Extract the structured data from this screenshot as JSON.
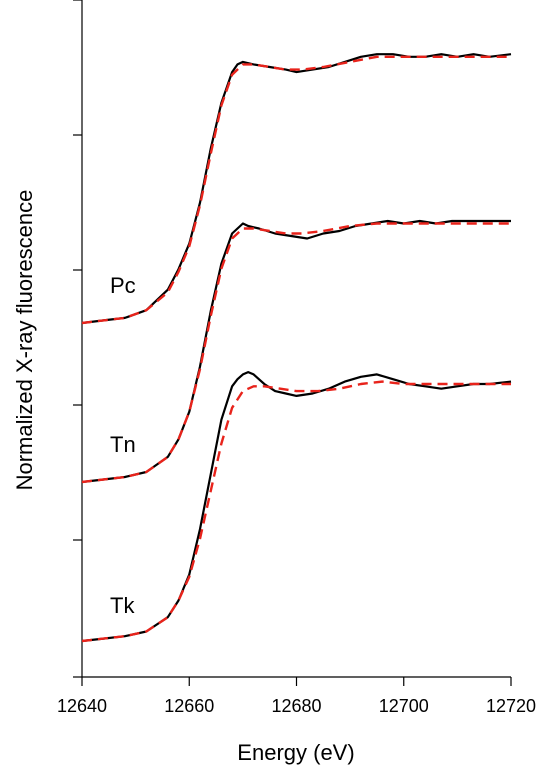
{
  "chart_data": {
    "type": "line",
    "title": "",
    "xlabel": "Energy (eV)",
    "ylabel": "Normalized X-ray fluorescence",
    "xlim": [
      12640,
      12720
    ],
    "x_ticks": [
      12640,
      12660,
      12680,
      12700,
      12720
    ],
    "y_ticks_labeled": false,
    "grid": false,
    "legend": "none",
    "colors": {
      "measured": "#000000",
      "fit": "#e8231b"
    },
    "annotations": [
      "Pc",
      "Tn",
      "Tk"
    ],
    "series": [
      {
        "label": "Pc",
        "measured": {
          "x": [
            12640,
            12644,
            12648,
            12652,
            12656,
            12658,
            12660,
            12662,
            12664,
            12666,
            12668,
            12669,
            12670,
            12672,
            12675,
            12678,
            12680,
            12683,
            12686,
            12689,
            12692,
            12695,
            12698,
            12701,
            12704,
            12707,
            12710,
            12713,
            12716,
            12720
          ],
          "y": [
            0.0,
            0.01,
            0.02,
            0.05,
            0.13,
            0.21,
            0.31,
            0.47,
            0.68,
            0.86,
            0.98,
            1.01,
            1.02,
            1.01,
            1.0,
            0.99,
            0.98,
            0.99,
            1.0,
            1.02,
            1.04,
            1.05,
            1.05,
            1.04,
            1.04,
            1.05,
            1.04,
            1.05,
            1.04,
            1.05
          ]
        },
        "fit": {
          "x": [
            12640,
            12644,
            12648,
            12652,
            12656,
            12658,
            12660,
            12662,
            12664,
            12666,
            12668,
            12670,
            12672,
            12675,
            12678,
            12681,
            12685,
            12690,
            12695,
            12700,
            12705,
            12710,
            12715,
            12720
          ],
          "y": [
            0.0,
            0.01,
            0.02,
            0.05,
            0.12,
            0.2,
            0.3,
            0.46,
            0.66,
            0.85,
            0.97,
            1.01,
            1.01,
            1.0,
            0.99,
            0.99,
            1.0,
            1.02,
            1.04,
            1.04,
            1.04,
            1.04,
            1.04,
            1.04
          ]
        }
      },
      {
        "label": "Tn",
        "measured": {
          "x": [
            12640,
            12644,
            12648,
            12652,
            12656,
            12658,
            12660,
            12662,
            12664,
            12666,
            12668,
            12670,
            12671,
            12673,
            12676,
            12679,
            12682,
            12685,
            12688,
            12691,
            12694,
            12697,
            12700,
            12703,
            12706,
            12709,
            12712,
            12715,
            12718,
            12720
          ],
          "y": [
            0.0,
            0.01,
            0.02,
            0.04,
            0.1,
            0.17,
            0.28,
            0.46,
            0.68,
            0.87,
            0.99,
            1.03,
            1.02,
            1.01,
            0.99,
            0.98,
            0.97,
            0.99,
            1.0,
            1.02,
            1.03,
            1.04,
            1.03,
            1.04,
            1.03,
            1.04,
            1.04,
            1.04,
            1.04,
            1.04
          ]
        },
        "fit": {
          "x": [
            12640,
            12644,
            12648,
            12652,
            12656,
            12658,
            12660,
            12662,
            12664,
            12666,
            12668,
            12670,
            12672,
            12675,
            12678,
            12681,
            12685,
            12690,
            12695,
            12700,
            12705,
            12710,
            12715,
            12720
          ],
          "y": [
            0.0,
            0.01,
            0.02,
            0.04,
            0.1,
            0.17,
            0.28,
            0.45,
            0.66,
            0.85,
            0.97,
            1.01,
            1.01,
            1.0,
            0.99,
            0.99,
            1.0,
            1.02,
            1.03,
            1.03,
            1.03,
            1.03,
            1.03,
            1.03
          ]
        }
      },
      {
        "label": "Tk",
        "measured": {
          "x": [
            12640,
            12644,
            12648,
            12652,
            12656,
            12658,
            12660,
            12662,
            12664,
            12666,
            12668,
            12669,
            12670,
            12671,
            12672,
            12674,
            12676,
            12678,
            12680,
            12683,
            12686,
            12689,
            12692,
            12695,
            12698,
            12701,
            12704,
            12707,
            12710,
            12713,
            12716,
            12720
          ],
          "y": [
            0.0,
            0.01,
            0.02,
            0.04,
            0.1,
            0.17,
            0.28,
            0.47,
            0.7,
            0.93,
            1.07,
            1.1,
            1.12,
            1.13,
            1.12,
            1.08,
            1.05,
            1.04,
            1.03,
            1.04,
            1.06,
            1.09,
            1.11,
            1.12,
            1.1,
            1.08,
            1.07,
            1.06,
            1.07,
            1.08,
            1.08,
            1.09
          ]
        },
        "fit": {
          "x": [
            12640,
            12644,
            12648,
            12652,
            12656,
            12658,
            12660,
            12662,
            12664,
            12666,
            12668,
            12670,
            12672,
            12674,
            12677,
            12680,
            12684,
            12688,
            12692,
            12696,
            12700,
            12705,
            12710,
            12715,
            12720
          ],
          "y": [
            0.0,
            0.01,
            0.02,
            0.04,
            0.1,
            0.17,
            0.27,
            0.43,
            0.63,
            0.83,
            0.98,
            1.05,
            1.07,
            1.07,
            1.06,
            1.05,
            1.05,
            1.06,
            1.08,
            1.09,
            1.08,
            1.08,
            1.08,
            1.08,
            1.08
          ]
        }
      }
    ]
  }
}
